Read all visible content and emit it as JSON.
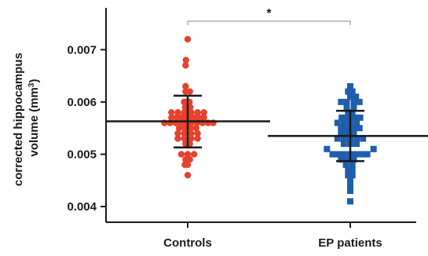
{
  "chart_data": {
    "type": "scatter",
    "title": "",
    "xlabel": "",
    "ylabel": "corrected hippocampus volume (mm3)",
    "ylabel_lines": [
      "corrected hippocampus",
      "volume (mm",
      "3",
      ")"
    ],
    "ylim": [
      0.0037,
      0.0078
    ],
    "yticks": [
      0.004,
      0.005,
      0.006,
      0.007
    ],
    "ytick_labels": [
      "0.004",
      "0.005",
      "0.006",
      "0.007"
    ],
    "categories": [
      "Controls",
      "EP patients"
    ],
    "grid": false,
    "legend": "none",
    "significance": {
      "from": 0,
      "to": 1,
      "label": "*"
    },
    "series": [
      {
        "category": "Controls",
        "color": "#e8412c",
        "marker": "circle",
        "mean": 0.00563,
        "sd_upper": 0.00612,
        "sd_lower": 0.00513,
        "points": [
          [
            0,
            0.0072
          ],
          [
            -0.25,
            0.0068
          ],
          [
            -0.3,
            0.0067
          ],
          [
            -0.3,
            0.0063
          ],
          [
            -0.3,
            0.0062
          ],
          [
            0.3,
            0.0062
          ],
          [
            -0.5,
            0.006
          ],
          [
            -0.25,
            0.006
          ],
          [
            0,
            0.006
          ],
          [
            0.25,
            0.006
          ],
          [
            -0.35,
            0.0059
          ],
          [
            0.35,
            0.0059
          ],
          [
            -2.3,
            0.0058
          ],
          [
            -1.4,
            0.0058
          ],
          [
            -0.5,
            0.0058
          ],
          [
            0.5,
            0.0058
          ],
          [
            1.4,
            0.0058
          ],
          [
            2.3,
            0.0058
          ],
          [
            -2.3,
            0.0057
          ],
          [
            -1.6,
            0.0057
          ],
          [
            -0.9,
            0.0057
          ],
          [
            -0.3,
            0.0057
          ],
          [
            0.3,
            0.0057
          ],
          [
            0.9,
            0.0057
          ],
          [
            1.6,
            0.0057
          ],
          [
            2.3,
            0.0057
          ],
          [
            -3.3,
            0.0056
          ],
          [
            -2.5,
            0.0056
          ],
          [
            -1.7,
            0.0056
          ],
          [
            -0.9,
            0.0056
          ],
          [
            -0.2,
            0.0056
          ],
          [
            0.5,
            0.0056
          ],
          [
            1.3,
            0.0056
          ],
          [
            2.1,
            0.0056
          ],
          [
            2.9,
            0.0056
          ],
          [
            3.6,
            0.0056
          ],
          [
            -1.2,
            0.0055
          ],
          [
            -0.4,
            0.0055
          ],
          [
            0.4,
            0.0055
          ],
          [
            1.2,
            0.0055
          ],
          [
            -1.4,
            0.0054
          ],
          [
            -0.5,
            0.0054
          ],
          [
            0.5,
            0.0054
          ],
          [
            1.4,
            0.0054
          ],
          [
            -1.4,
            0.0053
          ],
          [
            -0.5,
            0.0053
          ],
          [
            0.5,
            0.0053
          ],
          [
            1.4,
            0.0053
          ],
          [
            -0.3,
            0.0052
          ],
          [
            0.3,
            0.0052
          ],
          [
            -0.9,
            0.005
          ],
          [
            0,
            0.005
          ],
          [
            0.9,
            0.005
          ],
          [
            -0.3,
            0.0049
          ],
          [
            0.3,
            0.0049
          ],
          [
            -0.4,
            0.0048
          ],
          [
            0,
            0.0048
          ],
          [
            0,
            0.0046
          ]
        ]
      },
      {
        "category": "EP patients",
        "color": "#1f5eab",
        "marker": "square",
        "mean": 0.00535,
        "sd_upper": 0.00583,
        "sd_lower": 0.00487,
        "points": [
          [
            0,
            0.0063
          ],
          [
            -0.3,
            0.0062
          ],
          [
            0.3,
            0.0062
          ],
          [
            0,
            0.0061
          ],
          [
            0.8,
            0.0061
          ],
          [
            -1.3,
            0.006
          ],
          [
            -0.5,
            0.006
          ],
          [
            0.5,
            0.006
          ],
          [
            1.3,
            0.006
          ],
          [
            -0.5,
            0.0059
          ],
          [
            0.5,
            0.0059
          ],
          [
            -0.3,
            0.0058
          ],
          [
            0.3,
            0.0058
          ],
          [
            -1.2,
            0.0057
          ],
          [
            -0.6,
            0.0057
          ],
          [
            0,
            0.0057
          ],
          [
            0.6,
            0.0057
          ],
          [
            1.4,
            0.0057
          ],
          [
            -1.8,
            0.0056
          ],
          [
            -0.9,
            0.0056
          ],
          [
            0,
            0.0056
          ],
          [
            0.9,
            0.0056
          ],
          [
            -1.3,
            0.0055
          ],
          [
            -0.5,
            0.0055
          ],
          [
            0.5,
            0.0055
          ],
          [
            1.3,
            0.0055
          ],
          [
            -1.3,
            0.0054
          ],
          [
            -0.5,
            0.0054
          ],
          [
            0.5,
            0.0054
          ],
          [
            -1.8,
            0.0053
          ],
          [
            -0.9,
            0.0053
          ],
          [
            0,
            0.0053
          ],
          [
            0.9,
            0.0053
          ],
          [
            1.8,
            0.0053
          ],
          [
            -0.9,
            0.0052
          ],
          [
            0,
            0.0052
          ],
          [
            0.9,
            0.0052
          ],
          [
            -3.3,
            0.0051
          ],
          [
            3.3,
            0.0051
          ],
          [
            -2.5,
            0.005
          ],
          [
            -1.7,
            0.005
          ],
          [
            -0.9,
            0.005
          ],
          [
            0,
            0.005
          ],
          [
            0.8,
            0.005
          ],
          [
            1.6,
            0.005
          ],
          [
            2.4,
            0.005
          ],
          [
            -1.3,
            0.0049
          ],
          [
            -0.5,
            0.0049
          ],
          [
            0.5,
            0.0049
          ],
          [
            -0.6,
            0.0048
          ],
          [
            0.3,
            0.0048
          ],
          [
            -0.3,
            0.0047
          ],
          [
            0.3,
            0.0047
          ],
          [
            -0.3,
            0.0046
          ],
          [
            0.3,
            0.0046
          ],
          [
            0,
            0.0045
          ],
          [
            0,
            0.0044
          ],
          [
            0,
            0.0043
          ],
          [
            0,
            0.0041
          ]
        ]
      }
    ]
  }
}
